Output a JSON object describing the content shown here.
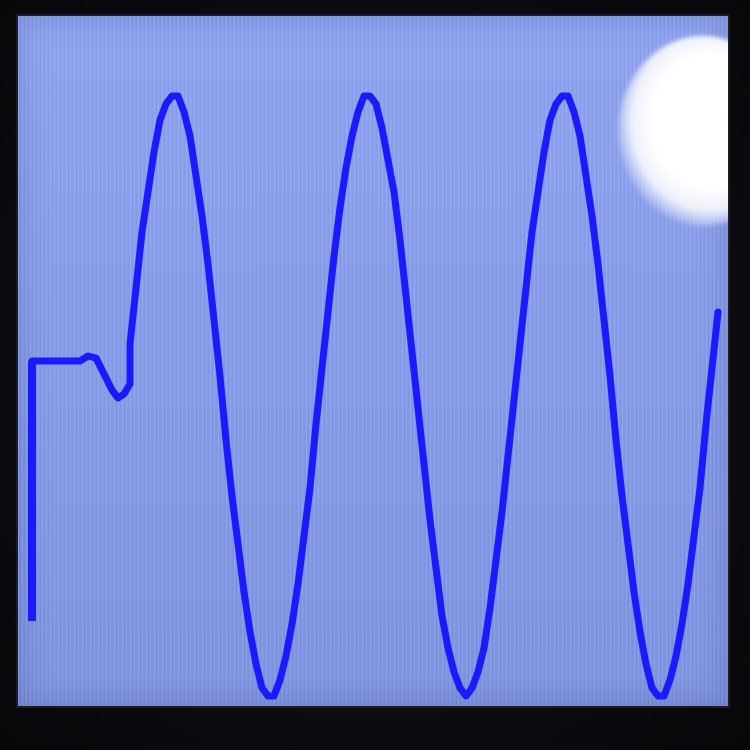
{
  "scene": {
    "description_colors": {
      "screen_background": "#8aa0f6",
      "trace_color": "#1a1aff",
      "bezel": "#0b0b10"
    },
    "elements": [
      "lcd-screen",
      "waveform-trace",
      "light-glare"
    ]
  },
  "trace": {
    "baseline_level": 0.5,
    "start_marker_low": 0.87,
    "cycles_visible": 3.5,
    "peak_level": 0.1,
    "trough_level": 0.98
  }
}
